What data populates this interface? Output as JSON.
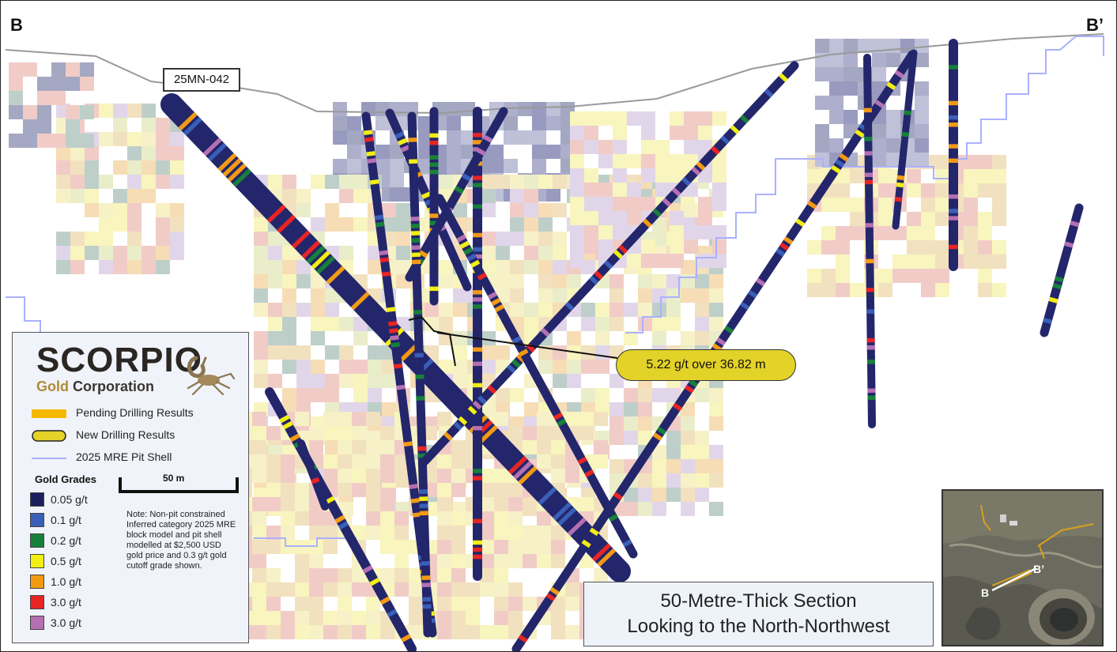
{
  "section": {
    "start_label": "B",
    "end_label": "B’",
    "hole_label": "25MN-042",
    "callout": "5.22 g/t over 36.82 m",
    "title_line1": "50-Metre-Thick Section",
    "title_line2": "Looking to the North-Northwest"
  },
  "legend": {
    "logo_word": "SCORPIO",
    "logo_sub_gold": "Gold",
    "logo_sub_corp": "Corporation",
    "items": [
      {
        "label": "Pending Drilling Results",
        "color": "#f5b800",
        "kind": "bar"
      },
      {
        "label": "New Drilling Results",
        "color": "#e3d228",
        "kind": "pill"
      },
      {
        "label": "2025 MRE Pit Shell",
        "color": "#aab0ff",
        "kind": "line"
      }
    ],
    "grades_title": "Gold Grades",
    "scale_label": "50 m",
    "grades": [
      {
        "label": "0.05 g/t",
        "color": "#1c1f5e"
      },
      {
        "label": "0.1  g/t",
        "color": "#3a5fb8"
      },
      {
        "label": "0.2  g/t",
        "color": "#17803a"
      },
      {
        "label": "0.5  g/t",
        "color": "#f2ee12"
      },
      {
        "label": "1.0  g/t",
        "color": "#f39a14"
      },
      {
        "label": "3.0  g/t",
        "color": "#e82424"
      },
      {
        "label": "3.0  g/t",
        "color": "#b56fb3"
      }
    ],
    "note": "Note: Non-pit constrained Inferred category 2025 MRE block model and pit shell modelled at $2,500 USD gold price and 0.3 g/t gold cutoff grade shown."
  },
  "inset": {
    "start_label": "B",
    "end_label": "B’"
  },
  "colors": {
    "hole_base": "#23266b",
    "topo": "#9a9a9a",
    "pit_shell": "#aab0ff"
  }
}
